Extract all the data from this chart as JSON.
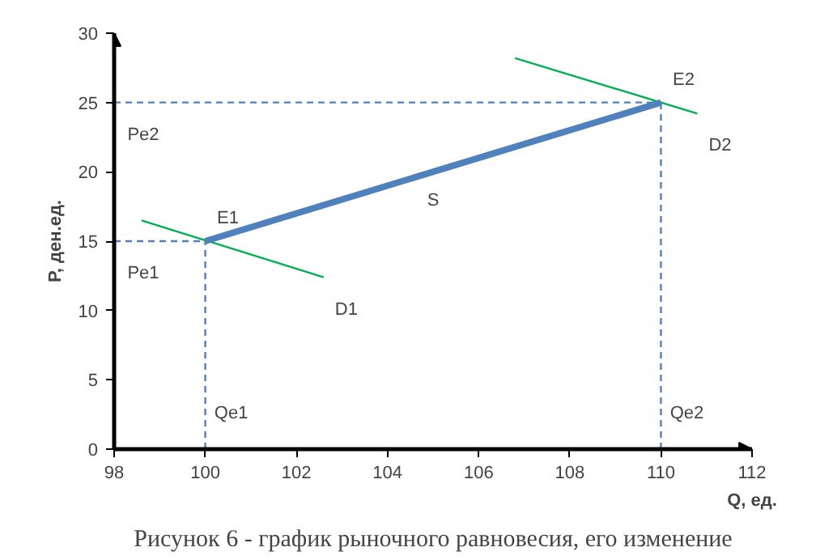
{
  "chart_data": {
    "type": "line",
    "xlabel": "Q, ед.",
    "ylabel": "P, ден.ед.",
    "xlim": [
      98,
      112
    ],
    "ylim": [
      0,
      30
    ],
    "xticks": [
      98,
      100,
      102,
      104,
      106,
      108,
      110,
      112
    ],
    "yticks": [
      0,
      5,
      10,
      15,
      20,
      25,
      30
    ],
    "grid": false,
    "marker": "none",
    "series": [
      {
        "color": "#4f81bd",
        "line_style": "dashed",
        "x": [
          98,
          110
        ],
        "values": [
          25,
          25
        ]
      },
      {
        "color": "#4f81bd",
        "line_style": "dashed",
        "x": [
          98,
          100
        ],
        "values": [
          15,
          15
        ]
      },
      {
        "color": "#4f81bd",
        "line_style": "dashed",
        "x": [
          100,
          100
        ],
        "values": [
          0,
          15
        ]
      },
      {
        "color": "#4f81bd",
        "line_style": "dashed",
        "x": [
          110,
          110
        ],
        "values": [
          0,
          25
        ]
      },
      {
        "name": "D1",
        "color": "#00b050",
        "line_style": "solid",
        "x": [
          98.6,
          102.6
        ],
        "values": [
          16.5,
          12.4
        ]
      },
      {
        "name": "D2",
        "color": "#00b050",
        "line_style": "solid",
        "x": [
          106.8,
          110.8
        ],
        "values": [
          28.2,
          24.2
        ]
      },
      {
        "name": "S",
        "color": "#4f81bd",
        "line_style": "solid",
        "x": [
          100,
          110
        ],
        "values": [
          15,
          25
        ]
      }
    ],
    "annotations": [
      {
        "text": "E1",
        "x": 100,
        "y": 15
      },
      {
        "text": "E2",
        "x": 110,
        "y": 25
      },
      {
        "text": "Pe2",
        "x": 98,
        "y": 25
      },
      {
        "text": "Pe1",
        "x": 98,
        "y": 15
      },
      {
        "text": "Qe1",
        "x": 100,
        "y": 0
      },
      {
        "text": "Qe2",
        "x": 110,
        "y": 0
      },
      "Рисунок 6 - график рыночного равновесия, его изменение"
    ]
  }
}
